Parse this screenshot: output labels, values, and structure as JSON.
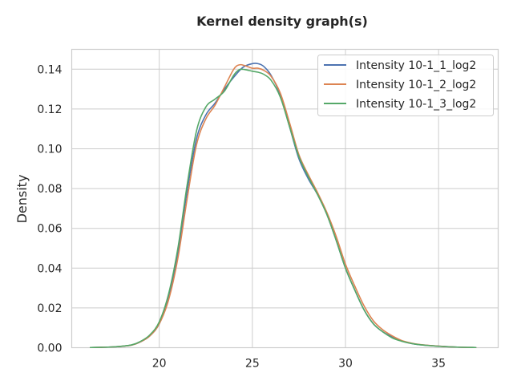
{
  "chart_data": {
    "type": "line",
    "title": "Kernel density graph(s)",
    "xlabel": "",
    "ylabel": "Density",
    "xlim": [
      15.3,
      38.2
    ],
    "ylim": [
      0,
      0.15
    ],
    "x_ticks": [
      20,
      25,
      30,
      35
    ],
    "y_ticks": [
      0.0,
      0.02,
      0.04,
      0.06,
      0.08,
      0.1,
      0.12,
      0.14
    ],
    "y_tick_labels": [
      "0.00",
      "0.02",
      "0.04",
      "0.06",
      "0.08",
      "0.10",
      "0.12",
      "0.14"
    ],
    "grid": true,
    "legend_position": "top-right",
    "series": [
      {
        "name": "Intensity 10-1_1_log2",
        "color": "#4c72b0",
        "x": [
          16.3,
          17.5,
          18.5,
          19.0,
          19.5,
          20.0,
          20.5,
          21.0,
          21.5,
          22.0,
          22.5,
          23.0,
          23.5,
          24.0,
          24.5,
          25.0,
          25.3,
          25.6,
          26.0,
          26.5,
          27.0,
          27.5,
          28.0,
          28.5,
          29.0,
          29.5,
          30.0,
          30.5,
          31.0,
          31.5,
          32.0,
          32.5,
          33.0,
          33.5,
          34.0,
          35.0,
          36.0,
          37.0
        ],
        "y": [
          0.0001,
          0.0004,
          0.0013,
          0.003,
          0.006,
          0.012,
          0.025,
          0.048,
          0.079,
          0.105,
          0.117,
          0.123,
          0.13,
          0.136,
          0.141,
          0.1428,
          0.1428,
          0.1415,
          0.137,
          0.127,
          0.111,
          0.095,
          0.085,
          0.077,
          0.067,
          0.054,
          0.04,
          0.029,
          0.019,
          0.012,
          0.008,
          0.0055,
          0.0035,
          0.0022,
          0.0015,
          0.0008,
          0.0003,
          0.0001
        ]
      },
      {
        "name": "Intensity 10-1_2_log2",
        "color": "#dd8452",
        "x": [
          16.3,
          17.5,
          18.5,
          19.0,
          19.5,
          20.0,
          20.5,
          21.0,
          21.5,
          22.0,
          22.5,
          23.0,
          23.5,
          24.0,
          24.3,
          24.6,
          25.0,
          25.3,
          25.6,
          26.0,
          26.5,
          27.0,
          27.5,
          28.0,
          28.5,
          29.0,
          29.5,
          30.0,
          30.5,
          31.0,
          31.5,
          32.0,
          32.5,
          33.0,
          33.5,
          34.0,
          35.0,
          36.0,
          37.0
        ],
        "y": [
          0.0001,
          0.0004,
          0.0013,
          0.003,
          0.006,
          0.012,
          0.024,
          0.045,
          0.075,
          0.102,
          0.115,
          0.122,
          0.131,
          0.14,
          0.1422,
          0.1418,
          0.1405,
          0.1405,
          0.1395,
          0.1365,
          0.128,
          0.113,
          0.097,
          0.087,
          0.078,
          0.068,
          0.056,
          0.042,
          0.031,
          0.021,
          0.0135,
          0.009,
          0.006,
          0.0037,
          0.0024,
          0.0016,
          0.0008,
          0.0003,
          0.0001
        ]
      },
      {
        "name": "Intensity 10-1_3_log2",
        "color": "#55a868",
        "x": [
          16.3,
          17.5,
          18.5,
          19.0,
          19.5,
          20.0,
          20.5,
          21.0,
          21.5,
          22.0,
          22.5,
          23.0,
          23.5,
          24.0,
          24.3,
          24.6,
          25.0,
          25.3,
          25.6,
          26.0,
          26.5,
          27.0,
          27.5,
          28.0,
          28.5,
          29.0,
          29.5,
          30.0,
          30.5,
          31.0,
          31.5,
          32.0,
          32.5,
          33.0,
          33.5,
          34.0,
          35.0,
          36.0,
          37.0
        ],
        "y": [
          0.0001,
          0.0004,
          0.0014,
          0.0032,
          0.0065,
          0.013,
          0.027,
          0.05,
          0.082,
          0.109,
          0.121,
          0.125,
          0.129,
          0.137,
          0.1398,
          0.1398,
          0.139,
          0.1385,
          0.1375,
          0.1345,
          0.126,
          0.111,
          0.096,
          0.086,
          0.077,
          0.067,
          0.054,
          0.04,
          0.029,
          0.019,
          0.012,
          0.008,
          0.005,
          0.0033,
          0.0022,
          0.0015,
          0.0007,
          0.0003,
          0.0001
        ]
      }
    ]
  }
}
